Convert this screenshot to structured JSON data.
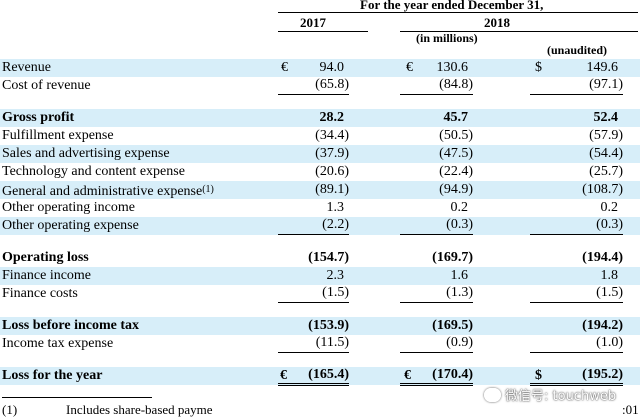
{
  "header": {
    "period_title": "For the year ended December 31,",
    "year_2017": "2017",
    "year_2018": "2018",
    "units": "(in millions)",
    "unaudited": "(unaudited)"
  },
  "currency": {
    "eur": "€",
    "usd": "$"
  },
  "rows": [
    {
      "label": "Revenue",
      "v2017": "94.0",
      "v2018_eur": "130.6",
      "v2018_usd": "149.6"
    },
    {
      "label": "Cost of revenue",
      "v2017": "(65.8)",
      "v2018_eur": "(84.8)",
      "v2018_usd": "(97.1)"
    },
    {
      "label": "Gross profit",
      "v2017": "28.2",
      "v2018_eur": "45.7",
      "v2018_usd": "52.4"
    },
    {
      "label": "Fulfillment expense",
      "v2017": "(34.4)",
      "v2018_eur": "(50.5)",
      "v2018_usd": "(57.9)"
    },
    {
      "label": "Sales and advertising expense",
      "v2017": "(37.9)",
      "v2018_eur": "(47.5)",
      "v2018_usd": "(54.4)"
    },
    {
      "label": "Technology and content expense",
      "v2017": "(20.6)",
      "v2018_eur": "(22.4)",
      "v2018_usd": "(25.7)"
    },
    {
      "label": "General and administrative expense",
      "footnote_ref": "(1)",
      "v2017": "(89.1)",
      "v2018_eur": "(94.9)",
      "v2018_usd": "(108.7)"
    },
    {
      "label": "Other operating income",
      "v2017": "1.3",
      "v2018_eur": "0.2",
      "v2018_usd": "0.2"
    },
    {
      "label": "Other operating expense",
      "v2017": "(2.2)",
      "v2018_eur": "(0.3)",
      "v2018_usd": "(0.3)"
    },
    {
      "label": "Operating loss",
      "v2017": "(154.7)",
      "v2018_eur": "(169.7)",
      "v2018_usd": "(194.4)"
    },
    {
      "label": "Finance income",
      "v2017": "2.3",
      "v2018_eur": "1.6",
      "v2018_usd": "1.8"
    },
    {
      "label": "Finance costs",
      "v2017": "(1.5)",
      "v2018_eur": "(1.3)",
      "v2018_usd": "(1.5)"
    },
    {
      "label": "Loss before income tax",
      "v2017": "(153.9)",
      "v2018_eur": "(169.5)",
      "v2018_usd": "(194.2)"
    },
    {
      "label": "Income tax expense",
      "v2017": "(11.5)",
      "v2018_eur": "(0.9)",
      "v2018_usd": "(1.0)"
    },
    {
      "label": "Loss for the year",
      "v2017": "(165.4)",
      "v2018_eur": "(170.4)",
      "v2018_usd": "(195.2)"
    }
  ],
  "footnote": {
    "marker": "(1)",
    "text": "Includes share-based payme",
    "trailing": ":01"
  },
  "watermark": {
    "icon": "wechat-icon",
    "text": "微信号: touchweb"
  }
}
